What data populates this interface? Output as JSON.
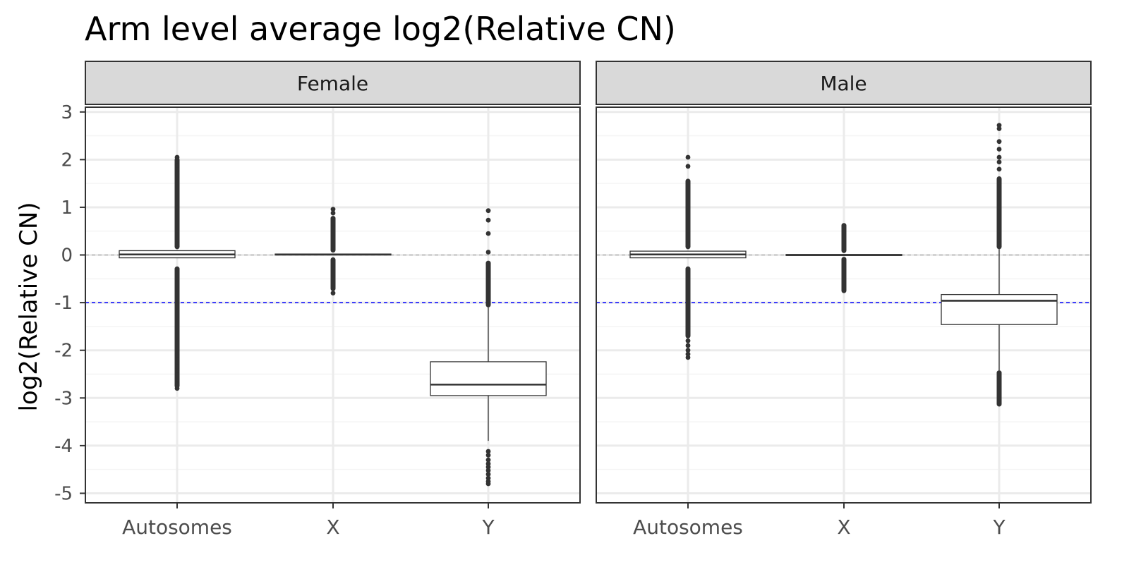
{
  "chart_data": {
    "type": "box",
    "title": "Arm level average log2(Relative CN)",
    "xlabel": "",
    "ylabel": "log2(Relative CN)",
    "ylim": [
      -5.2,
      3.1
    ],
    "y_ticks": [
      3,
      2,
      1,
      0,
      -1,
      -2,
      -3,
      -4,
      -5
    ],
    "categories": [
      "Autosomes",
      "X",
      "Y"
    ],
    "grid": true,
    "reference_lines": [
      {
        "y": 0,
        "style": "dashed",
        "color": "#bdbdbd"
      },
      {
        "y": -1,
        "style": "dashed",
        "color": "#0000ff"
      }
    ],
    "panels": [
      {
        "name": "Female",
        "boxes": [
          {
            "category": "Autosomes",
            "q1": -0.06,
            "median": 0.01,
            "q3": 0.09,
            "outliers_hi": [
              0.12,
              2.05
            ],
            "outliers_lo": [
              -0.24,
              -2.8
            ],
            "sparse_hi": [
              2.05,
              1.88,
              1.76,
              1.7
            ],
            "sparse_lo": [
              -2.1,
              -2.25,
              -2.42,
              -2.6,
              -2.72,
              -2.8
            ]
          },
          {
            "category": "X",
            "q1": 0.0,
            "median": 0.01,
            "q3": 0.02,
            "outliers_hi": [
              0.05,
              0.82
            ],
            "outliers_lo": [
              -0.05,
              -0.76
            ],
            "sparse_hi": [
              0.96,
              0.88
            ],
            "sparse_lo": [
              -0.8
            ]
          },
          {
            "category": "Y",
            "q1": -2.95,
            "median": -2.72,
            "q3": -2.24,
            "whisker_hi": -1.1,
            "whisker_lo": -3.9,
            "outliers_hi": [
              -1.1,
              -0.12
            ],
            "outliers_lo": [],
            "sparse_hi": [
              0.06,
              0.45,
              0.73,
              0.93
            ],
            "sparse_lo": [
              -4.12,
              -4.2,
              -4.3,
              -4.38,
              -4.45,
              -4.52,
              -4.6,
              -4.68,
              -4.75,
              -4.8
            ]
          }
        ]
      },
      {
        "name": "Male",
        "boxes": [
          {
            "category": "Autosomes",
            "q1": -0.06,
            "median": 0.01,
            "q3": 0.08,
            "outliers_hi": [
              0.12,
              1.6
            ],
            "outliers_lo": [
              -0.24,
              -1.75
            ],
            "sparse_hi": [
              2.05,
              1.86
            ],
            "sparse_lo": [
              -1.8,
              -1.9,
              -2.0,
              -2.08,
              -2.15
            ]
          },
          {
            "category": "X",
            "q1": -0.01,
            "median": 0.0,
            "q3": 0.01,
            "outliers_hi": [
              0.04,
              0.67
            ],
            "outliers_lo": [
              -0.04,
              -0.8
            ],
            "sparse_hi": [],
            "sparse_lo": []
          },
          {
            "category": "Y",
            "q1": -1.46,
            "median": -0.96,
            "q3": -0.83,
            "whisker_hi": 0.12,
            "whisker_lo": -2.42,
            "outliers_hi": [
              0.12,
              1.65
            ],
            "outliers_lo": [
              -2.42,
              -3.18
            ],
            "sparse_hi": [
              1.8,
              1.95,
              2.05,
              2.22,
              2.38,
              2.65,
              2.72
            ],
            "sparse_lo": []
          }
        ]
      }
    ]
  }
}
